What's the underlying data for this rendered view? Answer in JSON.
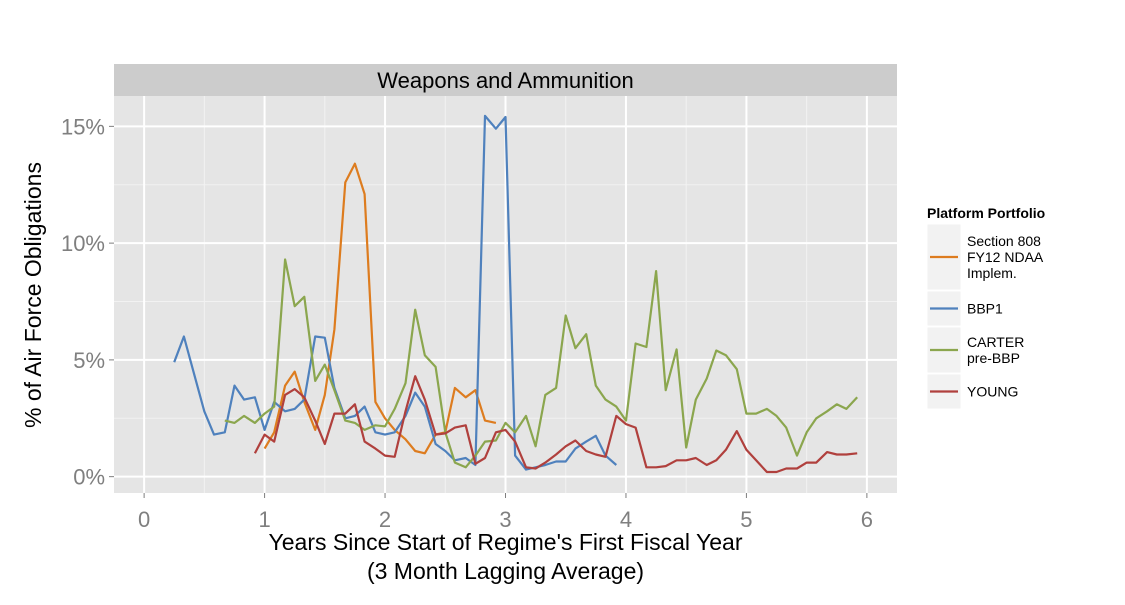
{
  "chart_data": {
    "type": "line",
    "facet_title": "Weapons and Ammunition",
    "title": "",
    "xlabel_line1": "Years Since Start of Regime's First Fiscal Year",
    "xlabel_line2": "(3 Month Lagging Average)",
    "ylabel": "% of Air Force Obligations",
    "xlim": [
      -0.25,
      6.25
    ],
    "ylim": [
      -0.7,
      16.3
    ],
    "x_ticks": [
      0,
      1,
      2,
      3,
      4,
      5,
      6
    ],
    "x_tick_labels": [
      "0",
      "1",
      "2",
      "3",
      "4",
      "5",
      "6"
    ],
    "y_ticks": [
      0,
      5,
      10,
      15
    ],
    "y_tick_labels": [
      "0%",
      "5%",
      "10%",
      "15%"
    ],
    "grid": true,
    "legend_position": "right",
    "legend_title": "Platform Portfolio",
    "series": [
      {
        "name": "Section 808 FY12 NDAA Implem.",
        "label_lines": [
          "Section 808",
          "FY12 NDAA",
          "Implem."
        ],
        "color": "#dd7c1f",
        "x": [
          1.0,
          1.08,
          1.17,
          1.25,
          1.33,
          1.42,
          1.5,
          1.58,
          1.67,
          1.75,
          1.83,
          1.92,
          2.0,
          2.08,
          2.17,
          2.25,
          2.33,
          2.42,
          2.5,
          2.58,
          2.67,
          2.75,
          2.83,
          2.92
        ],
        "y": [
          1.2,
          1.9,
          3.9,
          4.5,
          3.2,
          2.0,
          3.5,
          6.3,
          12.6,
          13.4,
          12.1,
          3.2,
          2.5,
          2.0,
          1.6,
          1.1,
          1.0,
          1.8,
          1.9,
          3.8,
          3.4,
          3.7,
          2.4,
          2.3
        ]
      },
      {
        "name": "BBP1",
        "label_lines": [
          "BBP1"
        ],
        "color": "#4f81bd",
        "x": [
          0.25,
          0.33,
          0.42,
          0.5,
          0.58,
          0.67,
          0.75,
          0.83,
          0.92,
          1.0,
          1.08,
          1.17,
          1.25,
          1.33,
          1.42,
          1.5,
          1.58,
          1.67,
          1.75,
          1.83,
          1.92,
          2.0,
          2.08,
          2.17,
          2.25,
          2.33,
          2.42,
          2.5,
          2.58,
          2.67,
          2.75,
          2.83,
          2.92,
          3.0,
          3.08,
          3.17,
          3.25,
          3.33,
          3.42,
          3.5,
          3.58,
          3.67,
          3.75,
          3.83,
          3.92
        ],
        "y": [
          4.9,
          6.0,
          4.3,
          2.8,
          1.8,
          1.9,
          3.9,
          3.3,
          3.4,
          2.0,
          3.2,
          2.8,
          2.9,
          3.3,
          6.0,
          5.95,
          3.8,
          2.5,
          2.6,
          3.0,
          1.9,
          1.8,
          1.9,
          2.6,
          3.6,
          3.0,
          1.4,
          1.1,
          0.7,
          0.8,
          0.5,
          15.45,
          14.9,
          15.4,
          0.9,
          0.3,
          0.4,
          0.5,
          0.65,
          0.65,
          1.2,
          1.5,
          1.75,
          0.9,
          0.5
        ]
      },
      {
        "name": "CARTER pre-BBP",
        "label_lines": [
          "CARTER",
          "pre-BBP"
        ],
        "color": "#8ba64e",
        "x": [
          0.67,
          0.75,
          0.83,
          0.92,
          1.0,
          1.08,
          1.17,
          1.25,
          1.33,
          1.42,
          1.5,
          1.58,
          1.67,
          1.75,
          1.83,
          1.92,
          2.0,
          2.08,
          2.17,
          2.25,
          2.33,
          2.42,
          2.5,
          2.58,
          2.67,
          2.75,
          2.83,
          2.92,
          3.0,
          3.08,
          3.17,
          3.25,
          3.33,
          3.42,
          3.5,
          3.58,
          3.67,
          3.75,
          3.83,
          3.92,
          4.0,
          4.08,
          4.17,
          4.25,
          4.33,
          4.42,
          4.5,
          4.58,
          4.67,
          4.75,
          4.83,
          4.92,
          5.0,
          5.08,
          5.17,
          5.25,
          5.33,
          5.42,
          5.5,
          5.58,
          5.67,
          5.75,
          5.83,
          5.92
        ],
        "y": [
          2.4,
          2.3,
          2.6,
          2.3,
          2.7,
          3.0,
          9.3,
          7.3,
          7.7,
          4.1,
          4.8,
          3.7,
          2.4,
          2.3,
          2.0,
          2.2,
          2.15,
          2.9,
          4.0,
          7.15,
          5.2,
          4.7,
          1.9,
          0.6,
          0.4,
          0.9,
          1.5,
          1.55,
          2.3,
          1.9,
          2.6,
          1.3,
          3.5,
          3.8,
          6.9,
          5.5,
          6.1,
          3.9,
          3.3,
          3.0,
          2.4,
          5.7,
          5.55,
          8.8,
          3.7,
          5.45,
          1.25,
          3.3,
          4.2,
          5.4,
          5.2,
          4.6,
          2.7,
          2.7,
          2.9,
          2.6,
          2.1,
          0.9,
          1.9,
          2.5,
          2.8,
          3.1,
          2.9,
          3.4
        ]
      },
      {
        "name": "YOUNG",
        "label_lines": [
          "YOUNG"
        ],
        "color": "#b0403d",
        "x": [
          0.92,
          1.0,
          1.08,
          1.17,
          1.25,
          1.33,
          1.42,
          1.5,
          1.58,
          1.67,
          1.75,
          1.83,
          1.92,
          2.0,
          2.08,
          2.17,
          2.25,
          2.33,
          2.42,
          2.5,
          2.58,
          2.67,
          2.75,
          2.83,
          2.92,
          3.0,
          3.08,
          3.17,
          3.25,
          3.33,
          3.42,
          3.5,
          3.58,
          3.67,
          3.75,
          3.83,
          3.92,
          4.0,
          4.08,
          4.17,
          4.25,
          4.33,
          4.42,
          4.5,
          4.58,
          4.67,
          4.75,
          4.83,
          4.92,
          5.0,
          5.08,
          5.17,
          5.25,
          5.33,
          5.42,
          5.5,
          5.58,
          5.67,
          5.75,
          5.83,
          5.92
        ],
        "y": [
          1.0,
          1.8,
          1.5,
          3.5,
          3.75,
          3.4,
          2.4,
          1.4,
          2.7,
          2.7,
          3.1,
          1.5,
          1.2,
          0.9,
          0.85,
          2.8,
          4.3,
          3.3,
          1.8,
          1.85,
          2.1,
          2.2,
          0.55,
          0.8,
          1.9,
          2.0,
          1.5,
          0.4,
          0.35,
          0.6,
          0.95,
          1.3,
          1.55,
          1.1,
          0.95,
          0.85,
          2.6,
          2.25,
          2.1,
          0.4,
          0.4,
          0.45,
          0.7,
          0.7,
          0.8,
          0.5,
          0.7,
          1.15,
          1.95,
          1.15,
          0.7,
          0.2,
          0.2,
          0.35,
          0.35,
          0.6,
          0.6,
          1.05,
          0.95,
          0.95,
          1.0
        ]
      }
    ]
  }
}
